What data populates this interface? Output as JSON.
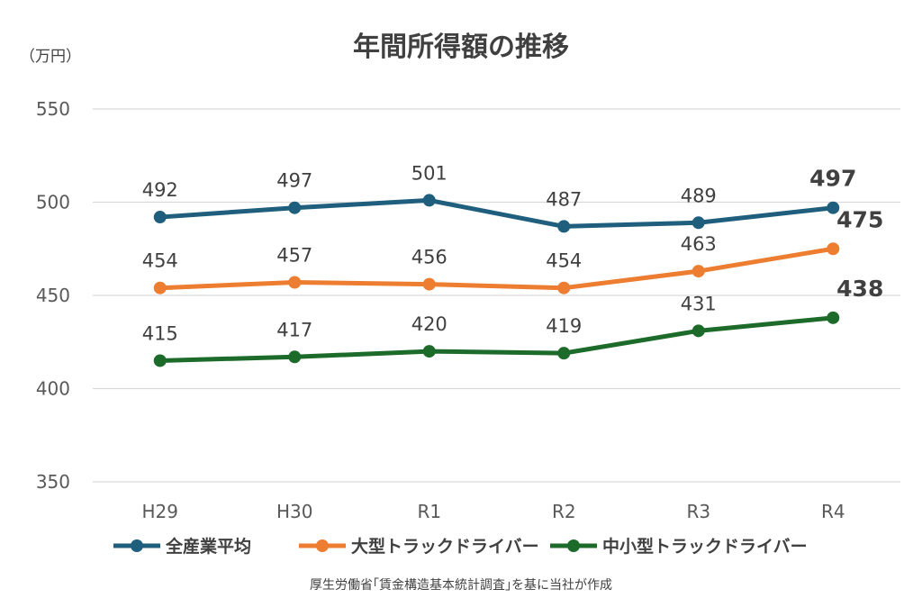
{
  "chart_data": {
    "type": "line",
    "title": "年間所得額の推移",
    "unit_label": "（万円）",
    "categories": [
      "H29",
      "H30",
      "R1",
      "R2",
      "R3",
      "R4"
    ],
    "ylim": [
      350,
      550
    ],
    "yticks": [
      350,
      400,
      450,
      500,
      550
    ],
    "grid": true,
    "legend_position": "bottom",
    "series": [
      {
        "name": "全産業平均",
        "color": "#1F5F7D",
        "values": [
          492,
          497,
          501,
          487,
          489,
          497
        ],
        "labels": [
          "492",
          "497",
          "501",
          "487",
          "489",
          "497"
        ]
      },
      {
        "name": "大型トラックドライバー",
        "color": "#ED7D31",
        "values": [
          454,
          457,
          456,
          454,
          463,
          475
        ],
        "labels": [
          "454",
          "457",
          "456",
          "454",
          "463",
          "475"
        ]
      },
      {
        "name": "中小型トラックドライバー",
        "color": "#1D6B2A",
        "values": [
          415,
          417,
          420,
          419,
          431,
          438
        ],
        "labels": [
          "415",
          "417",
          "420",
          "419",
          "431",
          "438"
        ]
      }
    ],
    "source": "厚生労働省｢賃金構造基本統計調査｣を基に当社が作成"
  }
}
